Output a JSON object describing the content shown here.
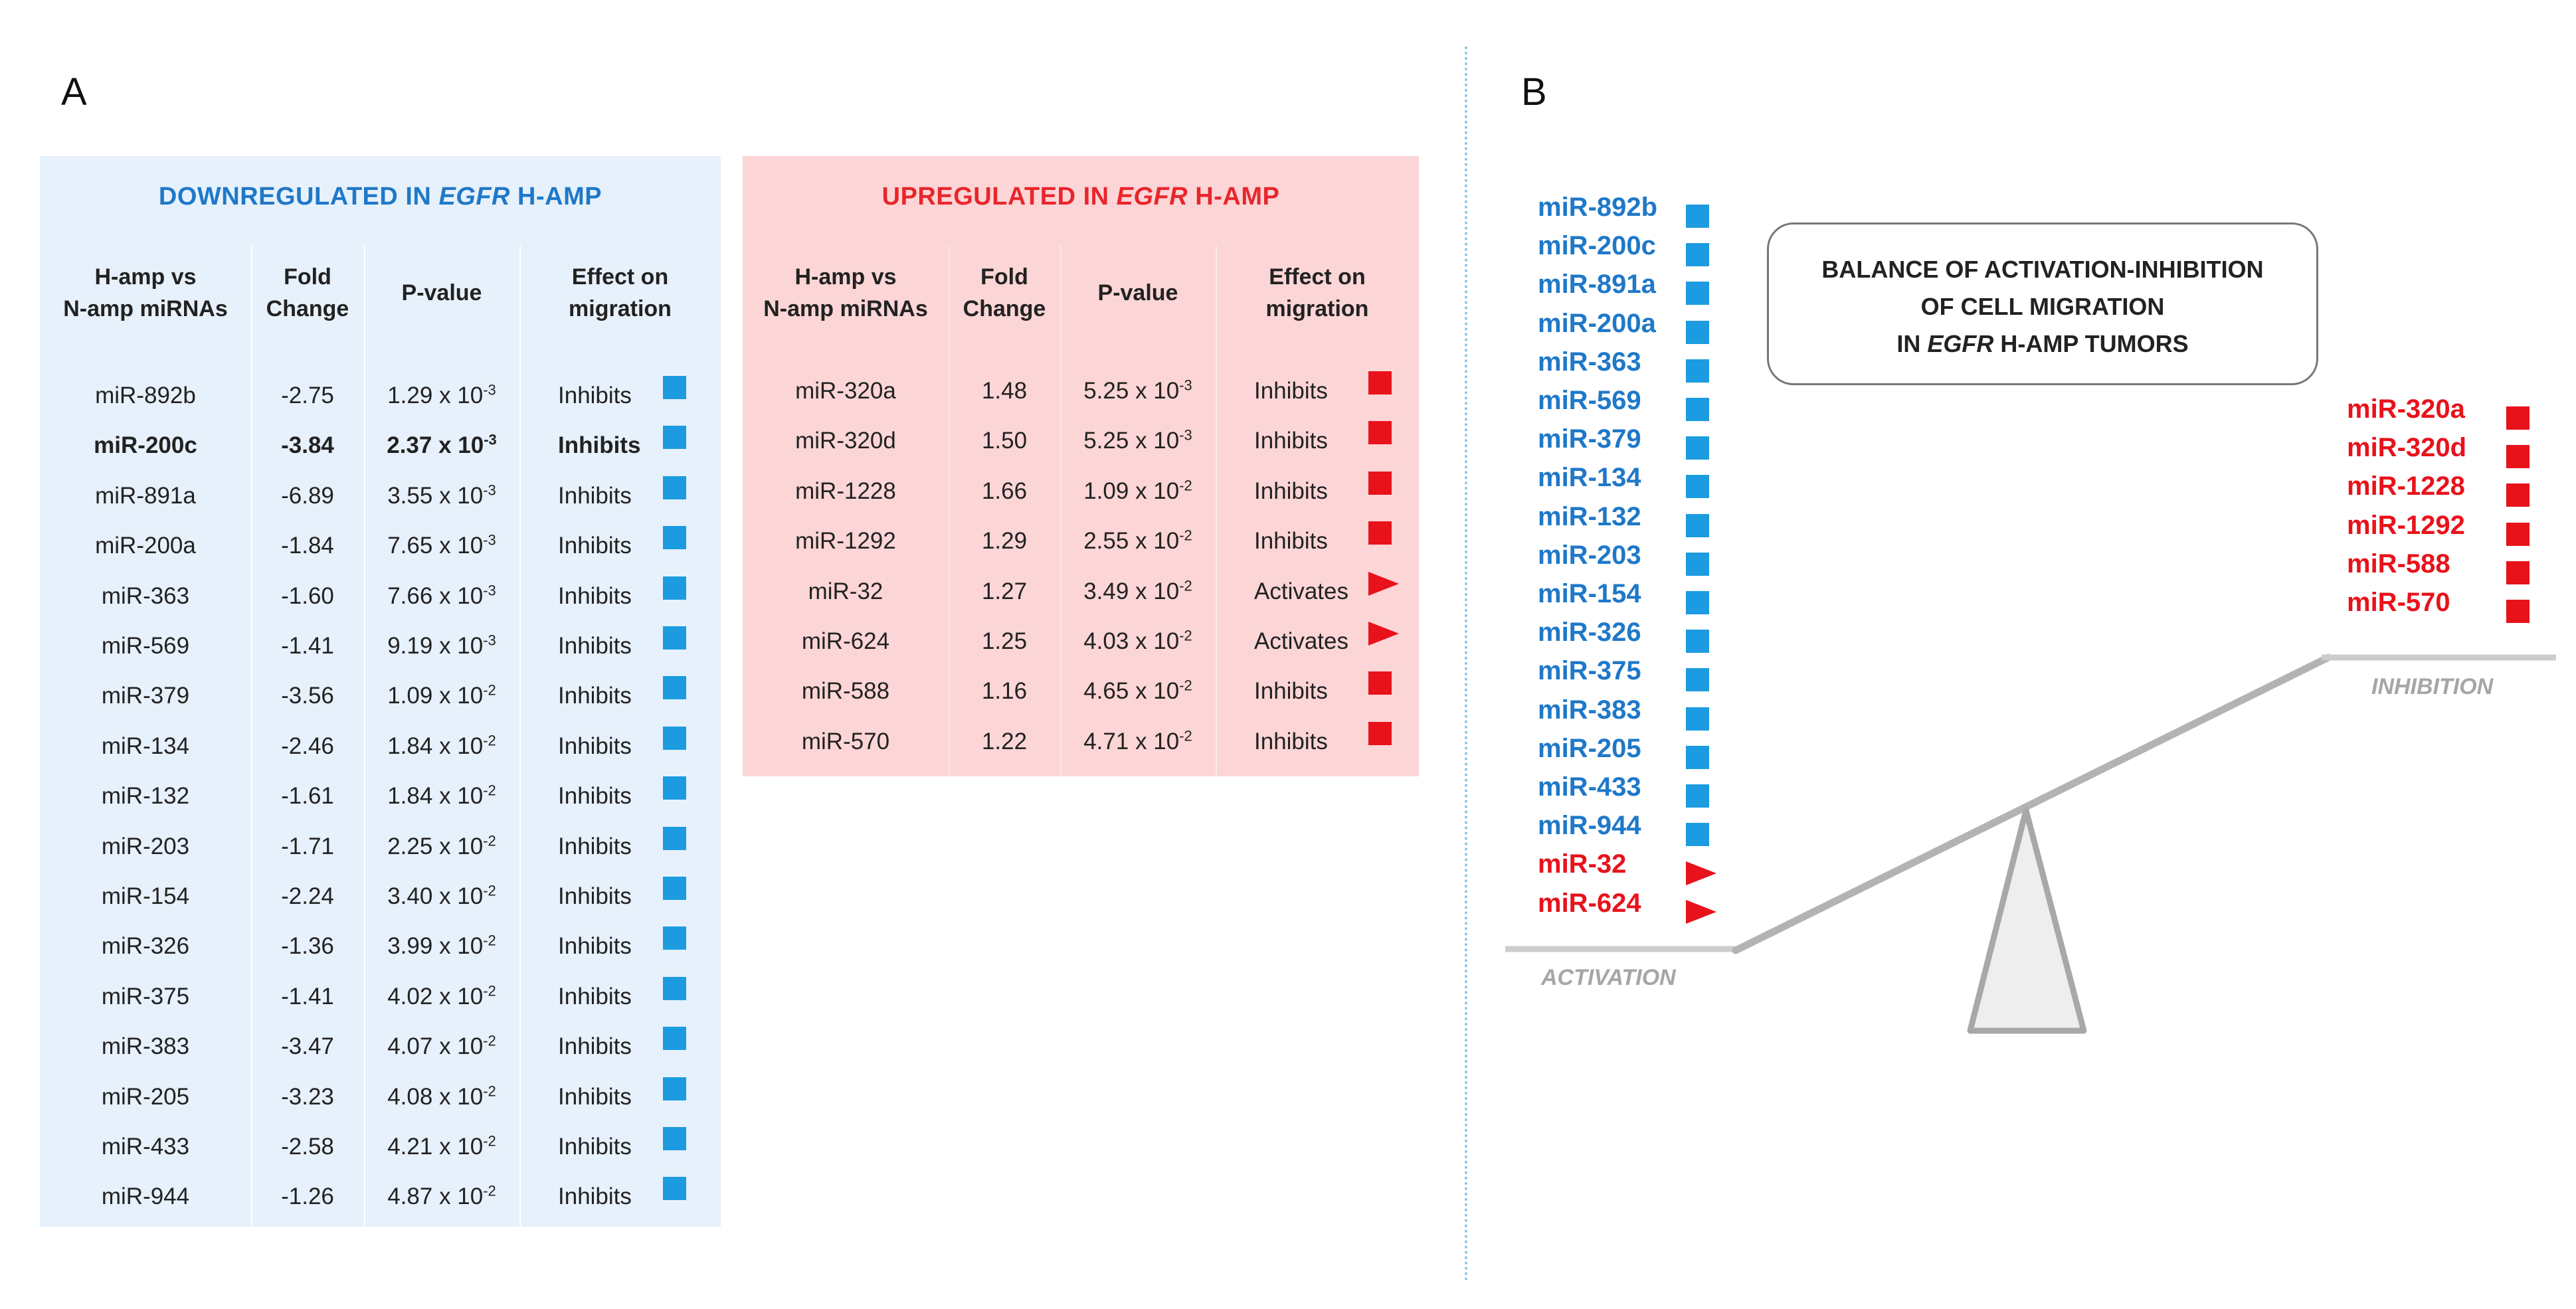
{
  "panel_a": {
    "letter": "A"
  },
  "panel_b": {
    "letter": "B"
  },
  "down_table": {
    "title_pre": "DOWNREGULATED IN ",
    "title_em": "EGFR",
    "title_post": " H-AMP",
    "headers": [
      "H-amp vs\nN-amp miRNAs",
      "Fold\nChange",
      "P-value",
      "Effect on\nmigration"
    ],
    "rows": [
      {
        "mirna": "miR-892b",
        "fc": "-2.75",
        "p": "1.29 x 10",
        "exp": "-3",
        "effect": "Inhibits",
        "marker": "square-blue"
      },
      {
        "mirna": "miR-200c",
        "fc": "-3.84",
        "p": "2.37 x 10",
        "exp": "-3",
        "effect": "Inhibits",
        "marker": "square-blue",
        "bold": true
      },
      {
        "mirna": "miR-891a",
        "fc": "-6.89",
        "p": "3.55 x 10",
        "exp": "-3",
        "effect": "Inhibits",
        "marker": "square-blue"
      },
      {
        "mirna": "miR-200a",
        "fc": "-1.84",
        "p": "7.65 x 10",
        "exp": "-3",
        "effect": "Inhibits",
        "marker": "square-blue"
      },
      {
        "mirna": "miR-363",
        "fc": "-1.60",
        "p": "7.66 x 10",
        "exp": "-3",
        "effect": "Inhibits",
        "marker": "square-blue"
      },
      {
        "mirna": "miR-569",
        "fc": "-1.41",
        "p": "9.19 x 10",
        "exp": "-3",
        "effect": "Inhibits",
        "marker": "square-blue"
      },
      {
        "mirna": "miR-379",
        "fc": "-3.56",
        "p": "1.09 x 10",
        "exp": "-2",
        "effect": "Inhibits",
        "marker": "square-blue"
      },
      {
        "mirna": "miR-134",
        "fc": "-2.46",
        "p": "1.84 x 10",
        "exp": "-2",
        "effect": "Inhibits",
        "marker": "square-blue"
      },
      {
        "mirna": "miR-132",
        "fc": "-1.61",
        "p": "1.84 x 10",
        "exp": "-2",
        "effect": "Inhibits",
        "marker": "square-blue"
      },
      {
        "mirna": "miR-203",
        "fc": "-1.71",
        "p": "2.25 x 10",
        "exp": "-2",
        "effect": "Inhibits",
        "marker": "square-blue"
      },
      {
        "mirna": "miR-154",
        "fc": "-2.24",
        "p": "3.40 x 10",
        "exp": "-2",
        "effect": "Inhibits",
        "marker": "square-blue"
      },
      {
        "mirna": "miR-326",
        "fc": "-1.36",
        "p": "3.99 x 10",
        "exp": "-2",
        "effect": "Inhibits",
        "marker": "square-blue"
      },
      {
        "mirna": "miR-375",
        "fc": "-1.41",
        "p": "4.02 x 10",
        "exp": "-2",
        "effect": "Inhibits",
        "marker": "square-blue"
      },
      {
        "mirna": "miR-383",
        "fc": "-3.47",
        "p": "4.07 x 10",
        "exp": "-2",
        "effect": "Inhibits",
        "marker": "square-blue"
      },
      {
        "mirna": "miR-205",
        "fc": "-3.23",
        "p": "4.08 x 10",
        "exp": "-2",
        "effect": "Inhibits",
        "marker": "square-blue"
      },
      {
        "mirna": "miR-433",
        "fc": "-2.58",
        "p": "4.21 x 10",
        "exp": "-2",
        "effect": "Inhibits",
        "marker": "square-blue"
      },
      {
        "mirna": "miR-944",
        "fc": "-1.26",
        "p": "4.87 x 10",
        "exp": "-2",
        "effect": "Inhibits",
        "marker": "square-blue"
      }
    ]
  },
  "up_table": {
    "title_pre": "UPREGULATED IN ",
    "title_em": "EGFR",
    "title_post": " H-AMP",
    "headers": [
      "H-amp vs\nN-amp miRNAs",
      "Fold\nChange",
      "P-value",
      "Effect on\nmigration"
    ],
    "rows": [
      {
        "mirna": "miR-320a",
        "fc": "1.48",
        "p": "5.25 x 10",
        "exp": "-3",
        "effect": "Inhibits",
        "marker": "square-red"
      },
      {
        "mirna": "miR-320d",
        "fc": "1.50",
        "p": "5.25 x 10",
        "exp": "-3",
        "effect": "Inhibits",
        "marker": "square-red"
      },
      {
        "mirna": "miR-1228",
        "fc": "1.66",
        "p": "1.09 x 10",
        "exp": "-2",
        "effect": "Inhibits",
        "marker": "square-red"
      },
      {
        "mirna": "miR-1292",
        "fc": "1.29",
        "p": "2.55 x 10",
        "exp": "-2",
        "effect": "Inhibits",
        "marker": "square-red"
      },
      {
        "mirna": "miR-32",
        "fc": "1.27",
        "p": "3.49 x 10",
        "exp": "-2",
        "effect": "Activates",
        "marker": "triangle-red"
      },
      {
        "mirna": "miR-624",
        "fc": "1.25",
        "p": "4.03 x 10",
        "exp": "-2",
        "effect": "Activates",
        "marker": "triangle-red"
      },
      {
        "mirna": "miR-588",
        "fc": "1.16",
        "p": "4.65 x 10",
        "exp": "-2",
        "effect": "Inhibits",
        "marker": "square-red"
      },
      {
        "mirna": "miR-570",
        "fc": "1.22",
        "p": "4.71 x 10",
        "exp": "-2",
        "effect": "Inhibits",
        "marker": "square-red"
      }
    ]
  },
  "balance": {
    "title_line1": "BALANCE OF ACTIVATION-INHIBITION",
    "title_line2": "OF CELL MIGRATION",
    "title_line3_em": "EGFR",
    "title_line3_pre": "IN ",
    "title_line3_post": " H-AMP TUMORS",
    "activation_label": "ACTIVATION",
    "inhibition_label": "INHIBITION",
    "left_list": [
      {
        "name": "miR-892b",
        "color": "blue",
        "marker": "square-blue"
      },
      {
        "name": "miR-200c",
        "color": "blue",
        "marker": "square-blue"
      },
      {
        "name": "miR-891a",
        "color": "blue",
        "marker": "square-blue"
      },
      {
        "name": "miR-200a",
        "color": "blue",
        "marker": "square-blue"
      },
      {
        "name": "miR-363",
        "color": "blue",
        "marker": "square-blue"
      },
      {
        "name": "miR-569",
        "color": "blue",
        "marker": "square-blue"
      },
      {
        "name": "miR-379",
        "color": "blue",
        "marker": "square-blue"
      },
      {
        "name": "miR-134",
        "color": "blue",
        "marker": "square-blue"
      },
      {
        "name": "miR-132",
        "color": "blue",
        "marker": "square-blue"
      },
      {
        "name": "miR-203",
        "color": "blue",
        "marker": "square-blue"
      },
      {
        "name": "miR-154",
        "color": "blue",
        "marker": "square-blue"
      },
      {
        "name": "miR-326",
        "color": "blue",
        "marker": "square-blue"
      },
      {
        "name": "miR-375",
        "color": "blue",
        "marker": "square-blue"
      },
      {
        "name": "miR-383",
        "color": "blue",
        "marker": "square-blue"
      },
      {
        "name": "miR-205",
        "color": "blue",
        "marker": "square-blue"
      },
      {
        "name": "miR-433",
        "color": "blue",
        "marker": "square-blue"
      },
      {
        "name": "miR-944",
        "color": "blue",
        "marker": "square-blue"
      },
      {
        "name": "miR-32",
        "color": "red",
        "marker": "triangle-red"
      },
      {
        "name": "miR-624",
        "color": "red",
        "marker": "triangle-red"
      }
    ],
    "right_list": [
      {
        "name": "miR-320a",
        "color": "red",
        "marker": "square-red"
      },
      {
        "name": "miR-320d",
        "color": "red",
        "marker": "square-red"
      },
      {
        "name": "miR-1228",
        "color": "red",
        "marker": "square-red"
      },
      {
        "name": "miR-1292",
        "color": "red",
        "marker": "square-red"
      },
      {
        "name": "miR-588",
        "color": "red",
        "marker": "square-red"
      },
      {
        "name": "miR-570",
        "color": "red",
        "marker": "square-red"
      }
    ]
  },
  "colors": {
    "blue": "#1f78c8",
    "red": "#e8121b",
    "blue_panel": "#e7f1fb",
    "red_panel": "#fcd5d6",
    "scale_gray": "#bcbcbc"
  }
}
